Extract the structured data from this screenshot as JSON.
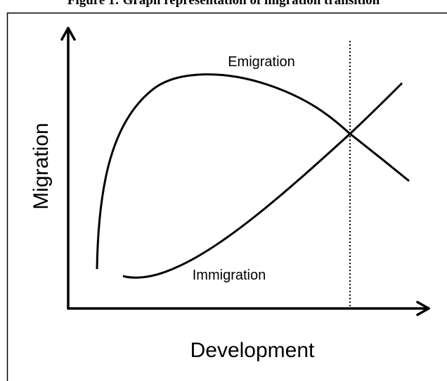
{
  "header": {
    "title": "Figure 1: Graph representation of migration transition"
  },
  "diagram": {
    "y_axis_label": "Migration",
    "x_axis_label": "Development",
    "curves": [
      {
        "label": "Emigration"
      },
      {
        "label": "Immigration"
      }
    ]
  }
}
